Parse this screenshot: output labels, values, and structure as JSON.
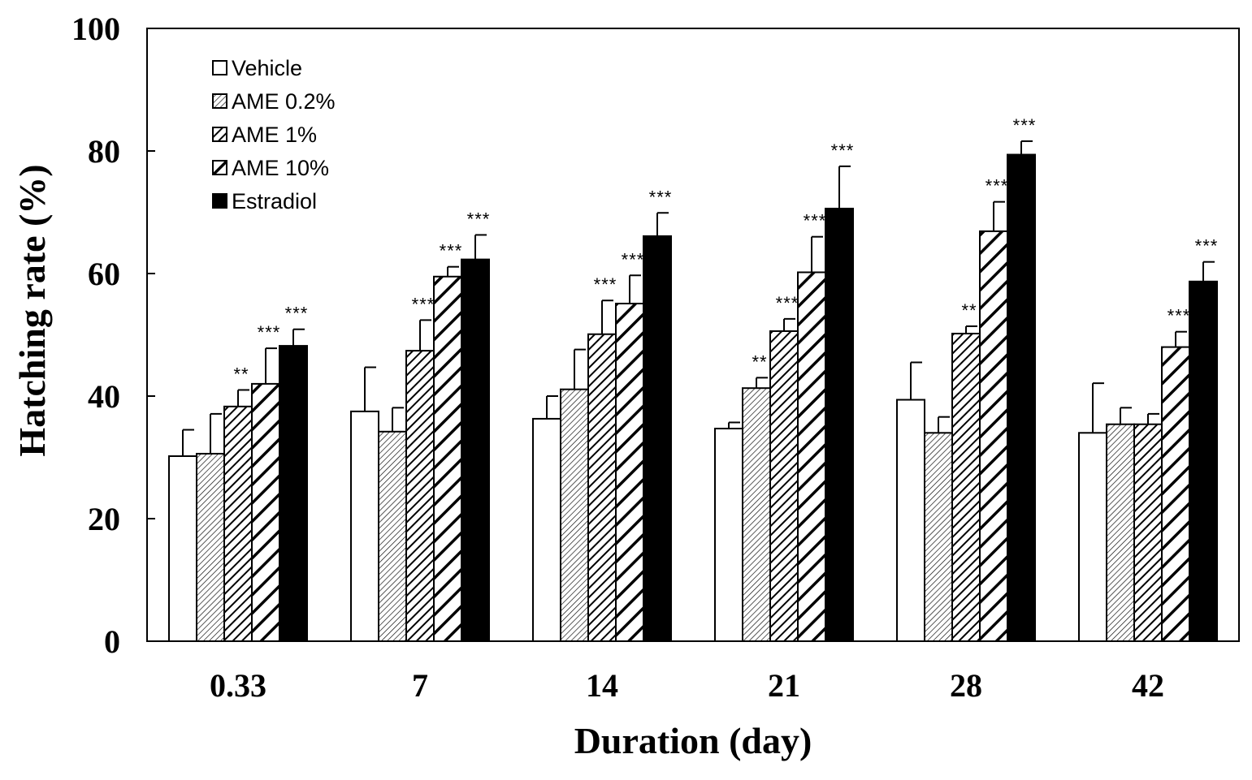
{
  "chart_data": {
    "type": "bar",
    "title": "",
    "xlabel": "Duration (day)",
    "ylabel": "Hatching rate (%)",
    "ylim": [
      0,
      100
    ],
    "yticks": [
      0,
      20,
      40,
      60,
      80,
      100
    ],
    "categories": [
      "0.33",
      "7",
      "14",
      "21",
      "28",
      "42"
    ],
    "legend_position": "top-left",
    "series": [
      {
        "name": "Vehicle",
        "fill": "white",
        "values": [
          30.2,
          37.5,
          36.3,
          34.7,
          39.4,
          34.0
        ],
        "errors": [
          4.3,
          7.2,
          3.7,
          1.0,
          6.1,
          8.1
        ],
        "significance": [
          "",
          "",
          "",
          "",
          "",
          ""
        ]
      },
      {
        "name": "AME 0.2%",
        "fill": "fine-hatch",
        "values": [
          30.6,
          34.2,
          41.1,
          41.3,
          34.0,
          35.4
        ],
        "errors": [
          6.5,
          3.9,
          6.5,
          1.7,
          2.6,
          2.7
        ],
        "significance": [
          "",
          "",
          "",
          "**",
          "",
          ""
        ]
      },
      {
        "name": "AME 1%",
        "fill": "medium-hatch",
        "values": [
          38.3,
          47.4,
          50.1,
          50.6,
          50.2,
          35.4
        ],
        "errors": [
          2.7,
          5.0,
          5.5,
          2.0,
          1.2,
          1.7
        ],
        "significance": [
          "**",
          "***",
          "***",
          "***",
          "**",
          ""
        ]
      },
      {
        "name": "AME 10%",
        "fill": "wide-hatch",
        "values": [
          42.0,
          59.5,
          55.1,
          60.2,
          66.9,
          48.0
        ],
        "errors": [
          5.8,
          1.6,
          4.6,
          5.8,
          4.8,
          2.5
        ],
        "significance": [
          "***",
          "***",
          "***",
          "***",
          "***",
          "***"
        ]
      },
      {
        "name": "Estradiol",
        "fill": "black",
        "values": [
          48.2,
          62.3,
          66.1,
          70.6,
          79.4,
          58.7
        ],
        "errors": [
          2.7,
          4.0,
          3.8,
          6.9,
          2.2,
          3.2
        ],
        "significance": [
          "***",
          "***",
          "***",
          "***",
          "***",
          "***"
        ]
      }
    ]
  },
  "colors": {
    "axis": "#000000",
    "bar_edge": "#000000",
    "background": "#ffffff"
  }
}
